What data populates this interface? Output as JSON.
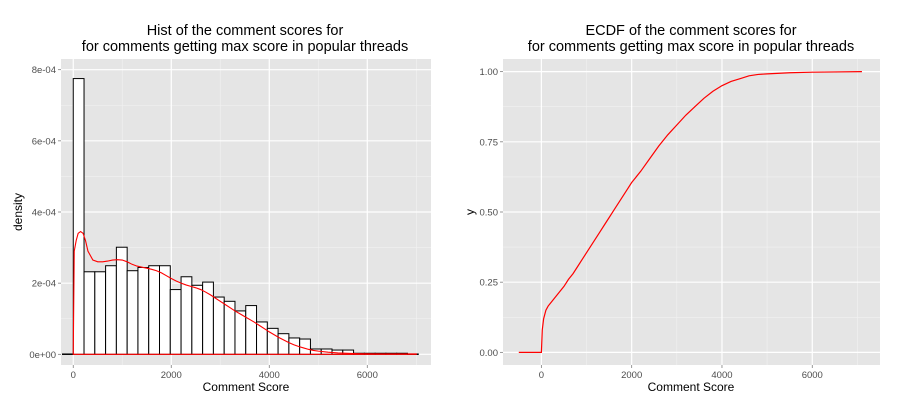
{
  "colors": {
    "panel": "#e5e5e5",
    "grid_major": "#ffffff",
    "density_curve": "#ff0000",
    "bar_fill": "#ffffff",
    "bar_outline": "#000000"
  },
  "chart_data": [
    {
      "type": "bar",
      "title_line1": "Hist of the comment scores for",
      "title_line2": "for comments getting max score in popular threads",
      "xlabel": "Comment Score",
      "ylabel": "density",
      "xlim": [
        -250,
        7300
      ],
      "ylim": [
        -3e-05,
        0.00083
      ],
      "xticks": [
        0,
        2000,
        4000,
        6000
      ],
      "xtick_labels": [
        "0",
        "2000",
        "4000",
        "6000"
      ],
      "yticks": [
        0,
        0.0002,
        0.0004,
        0.0006,
        0.0008
      ],
      "ytick_labels": [
        "0e+00",
        "2e-04",
        "4e-04",
        "6e-04",
        "8e-04"
      ],
      "grid": true,
      "bin_width": 220,
      "bins": [
        {
          "x0": -220,
          "x1": 0,
          "density": 1e-06
        },
        {
          "x0": 0,
          "x1": 220,
          "density": 0.000775
        },
        {
          "x0": 220,
          "x1": 440,
          "density": 0.000232
        },
        {
          "x0": 440,
          "x1": 660,
          "density": 0.000232
        },
        {
          "x0": 660,
          "x1": 880,
          "density": 0.000249
        },
        {
          "x0": 880,
          "x1": 1100,
          "density": 0.000301
        },
        {
          "x0": 1100,
          "x1": 1320,
          "density": 0.000235
        },
        {
          "x0": 1320,
          "x1": 1540,
          "density": 0.000244
        },
        {
          "x0": 1540,
          "x1": 1760,
          "density": 0.000249
        },
        {
          "x0": 1760,
          "x1": 1980,
          "density": 0.000249
        },
        {
          "x0": 1980,
          "x1": 2200,
          "density": 0.000182
        },
        {
          "x0": 2200,
          "x1": 2420,
          "density": 0.000218
        },
        {
          "x0": 2420,
          "x1": 2640,
          "density": 0.000194
        },
        {
          "x0": 2640,
          "x1": 2860,
          "density": 0.000203
        },
        {
          "x0": 2860,
          "x1": 3080,
          "density": 0.000161
        },
        {
          "x0": 3080,
          "x1": 3300,
          "density": 0.000149
        },
        {
          "x0": 3300,
          "x1": 3520,
          "density": 0.000122
        },
        {
          "x0": 3520,
          "x1": 3740,
          "density": 0.000137
        },
        {
          "x0": 3740,
          "x1": 3960,
          "density": 9.1e-05
        },
        {
          "x0": 3960,
          "x1": 4180,
          "density": 7.3e-05
        },
        {
          "x0": 4180,
          "x1": 4400,
          "density": 5.8e-05
        },
        {
          "x0": 4400,
          "x1": 4620,
          "density": 4.6e-05
        },
        {
          "x0": 4620,
          "x1": 4840,
          "density": 4.3e-05
        },
        {
          "x0": 4840,
          "x1": 5060,
          "density": 1.5e-05
        },
        {
          "x0": 5060,
          "x1": 5280,
          "density": 1.5e-05
        },
        {
          "x0": 5280,
          "x1": 5500,
          "density": 1.2e-05
        },
        {
          "x0": 5500,
          "x1": 5720,
          "density": 1.2e-05
        },
        {
          "x0": 5720,
          "x1": 5940,
          "density": 3e-06
        },
        {
          "x0": 5940,
          "x1": 6160,
          "density": 3e-06
        },
        {
          "x0": 6160,
          "x1": 6380,
          "density": 3e-06
        },
        {
          "x0": 6380,
          "x1": 6600,
          "density": 3e-06
        },
        {
          "x0": 6600,
          "x1": 6820,
          "density": 3e-06
        },
        {
          "x0": 6820,
          "x1": 7040,
          "density": 1e-06
        }
      ],
      "density_curve": {
        "x": [
          0,
          20,
          60,
          100,
          150,
          200,
          250,
          300,
          400,
          500,
          600,
          700,
          800,
          900,
          1000,
          1100,
          1200,
          1300,
          1400,
          1500,
          1600,
          1700,
          1800,
          1900,
          2000,
          2100,
          2200,
          2300,
          2400,
          2500,
          2600,
          2700,
          2800,
          2900,
          3000,
          3100,
          3200,
          3300,
          3400,
          3500,
          3600,
          3700,
          3800,
          3900,
          4000,
          4100,
          4200,
          4300,
          4400,
          4500,
          4600,
          4700,
          4800,
          4900,
          5000,
          5200,
          5400,
          5600,
          5800,
          6000,
          6400,
          6800,
          7000
        ],
        "y": [
          5e-06,
          0.00029,
          0.00032,
          0.00034,
          0.000345,
          0.00034,
          0.00032,
          0.00029,
          0.000265,
          0.00026,
          0.00026,
          0.000262,
          0.000265,
          0.000266,
          0.000265,
          0.00026,
          0.000253,
          0.000248,
          0.000245,
          0.000242,
          0.000239,
          0.000235,
          0.000229,
          0.000221,
          0.000213,
          0.000206,
          0.0002,
          0.000195,
          0.000191,
          0.000187,
          0.000182,
          0.000175,
          0.000167,
          0.000158,
          0.000149,
          0.00014,
          0.000131,
          0.000122,
          0.000114,
          0.000106,
          9.8e-05,
          9e-05,
          8.1e-05,
          7.2e-05,
          6.3e-05,
          5.5e-05,
          4.7e-05,
          4e-05,
          3.3e-05,
          2.7e-05,
          2.2e-05,
          1.8e-05,
          1.4e-05,
          1.1e-05,
          9e-06,
          6e-06,
          4e-06,
          3e-06,
          2e-06,
          1.5e-06,
          1e-06,
          1e-06,
          1e-06
        ]
      }
    },
    {
      "type": "line",
      "title_line1": "ECDF of the comment scores for",
      "title_line2": "for comments getting max score in popular threads",
      "xlabel": "Comment Score",
      "ylabel": "y",
      "xlim": [
        -850,
        7500
      ],
      "ylim": [
        -0.045,
        1.045
      ],
      "xticks": [
        0,
        2000,
        4000,
        6000
      ],
      "xtick_labels": [
        "0",
        "2000",
        "4000",
        "6000"
      ],
      "yticks": [
        0,
        0.25,
        0.5,
        0.75,
        1
      ],
      "ytick_labels": [
        "0.00",
        "0.25",
        "0.50",
        "0.75",
        "1.00"
      ],
      "grid": true,
      "series": [
        {
          "x": [
            -500,
            0,
            20,
            50,
            100,
            150,
            200,
            300,
            400,
            500,
            600,
            700,
            800,
            900,
            1000,
            1100,
            1200,
            1300,
            1400,
            1500,
            1600,
            1700,
            1800,
            1900,
            2000,
            2200,
            2400,
            2600,
            2800,
            3000,
            3200,
            3400,
            3600,
            3800,
            4000,
            4200,
            4400,
            4600,
            4800,
            5000,
            5500,
            6000,
            6500,
            7100
          ],
          "y": [
            0,
            0,
            0.08,
            0.12,
            0.15,
            0.165,
            0.175,
            0.195,
            0.215,
            0.235,
            0.26,
            0.28,
            0.305,
            0.33,
            0.355,
            0.38,
            0.405,
            0.43,
            0.455,
            0.48,
            0.505,
            0.53,
            0.555,
            0.58,
            0.605,
            0.645,
            0.69,
            0.735,
            0.775,
            0.81,
            0.845,
            0.875,
            0.905,
            0.93,
            0.95,
            0.965,
            0.975,
            0.985,
            0.99,
            0.992,
            0.996,
            0.998,
            0.999,
            1.0
          ]
        }
      ]
    }
  ]
}
